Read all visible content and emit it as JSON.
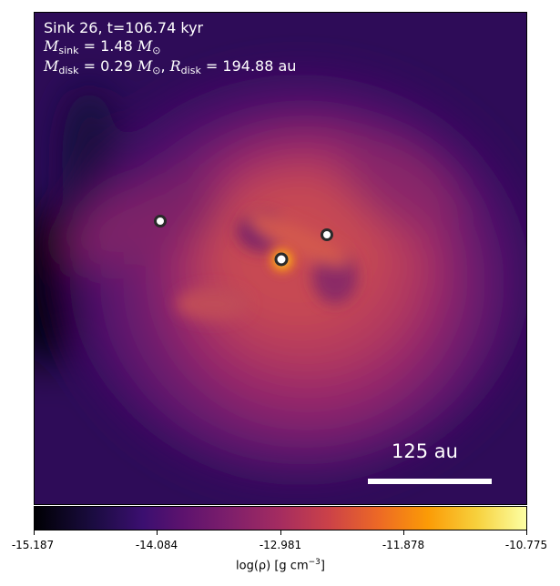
{
  "header": {
    "sink_label": "Sink 26, t=106.74 kyr",
    "msink_label": "M",
    "msink_sub": "sink",
    "msink_value": "= 1.48",
    "disk_m_label": "M",
    "disk_m_sub": "disk",
    "disk_m_value": "= 0.29",
    "disk_r_label": "R",
    "disk_r_sub": "disk",
    "disk_r_value": "= 194.88 au",
    "msun_symbol": "M",
    "msun_sub": "⊙"
  },
  "scalebar": {
    "label": "125 au"
  },
  "colorbar": {
    "ticks": [
      "-15.187",
      "-14.084",
      "-12.981",
      "-11.878",
      "-10.775"
    ],
    "label": "log(ρ) [g cm",
    "label_exp": "−3",
    "label_end": "]"
  },
  "sinks": [
    {
      "name": "sink-left"
    },
    {
      "name": "sink-right"
    },
    {
      "name": "sink-center"
    }
  ],
  "colors": {
    "cmap": "inferno",
    "background_dark": "#1c0a3e",
    "disk_core": "#c9474f",
    "hotspot": "#f9a11b"
  }
}
